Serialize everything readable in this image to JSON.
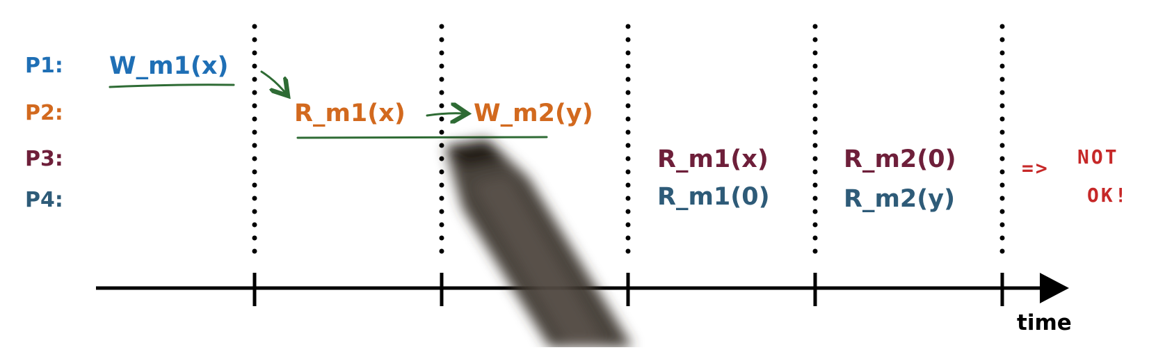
{
  "processes": [
    {
      "id": "p1",
      "label": "P1:",
      "color": "#1f6fb5"
    },
    {
      "id": "p2",
      "label": "P2:",
      "color": "#d2691e"
    },
    {
      "id": "p3",
      "label": "P3:",
      "color": "#6e1f3a"
    },
    {
      "id": "p4",
      "label": "P4:",
      "color": "#2e5b78"
    }
  ],
  "operations": {
    "p1_write_m1": "W_m1(x)",
    "p2_read_m1": "R_m1(x)",
    "p2_write_m2": "W_m2(y)",
    "p3_read_m1": "R_m1(x)",
    "p3_read_m2": "R_m2(0)",
    "p4_read_m1": "R_m1(0)",
    "p4_read_m2": "R_m2(y)"
  },
  "annotation": {
    "arrow_text": "=>",
    "line1": "NOT",
    "line2": "OK!",
    "color": "#c62828"
  },
  "axis": {
    "label": "time"
  },
  "colors": {
    "ink_green": "#2e6b34",
    "axis": "#000000"
  }
}
